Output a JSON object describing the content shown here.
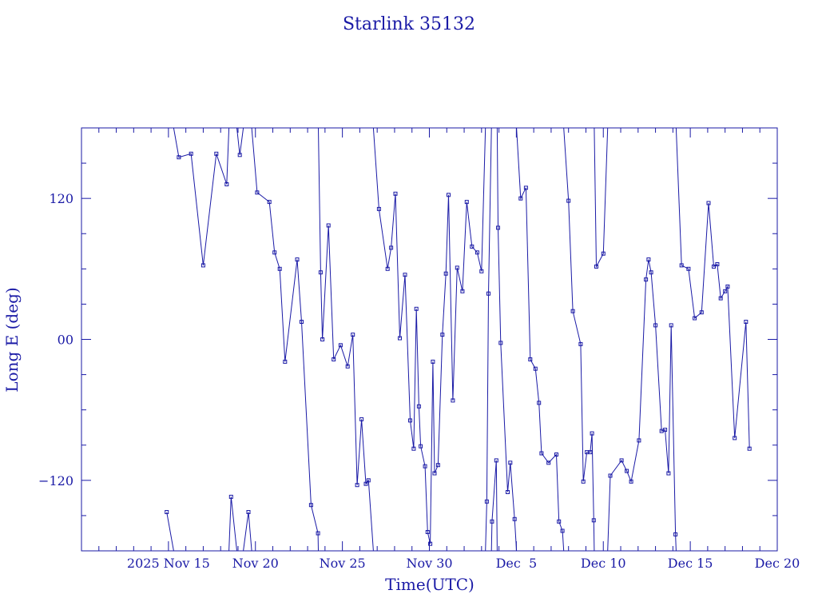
{
  "colors": {
    "ink": "#1a1aa6",
    "background": "#ffffff"
  },
  "chart_data": {
    "type": "line",
    "title": "Starlink 35132",
    "xlabel": "Time(UTC)",
    "ylabel": "Long E (deg)",
    "x_unit": "days from 2025 Nov 10 00:00 UTC",
    "xlim": [
      0,
      40
    ],
    "ylim": [
      -180,
      180
    ],
    "x_tick_values": [
      5,
      10,
      15,
      20,
      25,
      30,
      35,
      40
    ],
    "x_tick_labels": [
      "2025 Nov 15",
      "Nov 20",
      "Nov 25",
      "Nov 30",
      "Dec  5",
      "Dec 10",
      "Dec 15",
      "Dec 20"
    ],
    "y_tick_values": [
      -120,
      0,
      120
    ],
    "y_tick_labels": [
      "−120",
      "00",
      "120"
    ],
    "grid": false,
    "series": [
      {
        "marker": "square",
        "x": [
          4.9,
          5.6,
          6.3,
          7.0,
          7.75,
          8.35,
          8.6,
          9.1,
          9.6,
          10.1,
          10.8,
          11.1,
          11.4,
          11.7,
          12.4,
          12.65,
          13.2,
          13.6,
          13.75,
          13.85,
          14.2,
          14.5,
          14.9,
          15.3,
          15.6,
          15.85,
          16.1,
          16.35,
          16.5,
          17.1,
          17.6,
          17.8,
          18.05,
          18.3,
          18.6,
          18.9,
          19.1,
          19.25,
          19.4,
          19.5,
          19.75,
          19.9,
          20.05,
          20.2,
          20.3,
          20.5,
          20.75,
          20.95,
          21.1,
          21.35,
          21.6,
          21.9,
          22.15,
          22.45,
          22.75,
          23.0,
          23.3,
          23.4,
          23.6,
          23.85,
          23.95,
          24.1,
          24.5,
          24.65,
          24.9,
          25.25,
          25.55,
          25.8,
          26.1,
          26.3,
          26.45,
          26.85,
          27.3,
          27.45,
          27.65,
          28.0,
          28.25,
          28.7,
          28.85,
          29.05,
          29.25,
          29.35,
          29.45,
          29.6,
          30.0,
          30.4,
          31.05,
          31.35,
          31.6,
          32.05,
          32.45,
          32.6,
          32.75,
          33.0,
          33.35,
          33.55,
          33.75,
          33.9,
          34.15,
          34.5,
          34.9,
          35.25,
          35.65,
          36.05,
          36.35,
          36.55,
          36.75,
          37.0,
          37.15,
          37.55,
          38.2,
          38.4
        ],
        "y": [
          -147,
          155,
          158,
          63,
          158,
          132,
          -134,
          157,
          -147,
          125,
          117,
          74,
          60,
          -19,
          68,
          15,
          -141,
          -165,
          57,
          0,
          97,
          -17,
          -5,
          -23,
          4,
          -124,
          -68,
          -123,
          -120,
          111,
          60,
          78,
          124,
          1,
          55,
          -69,
          -93,
          26,
          -57,
          -91,
          -108,
          -164,
          -174,
          -19,
          -114,
          -107,
          4,
          56,
          123,
          -52,
          61,
          41,
          117,
          79,
          74,
          58,
          -138,
          39,
          -155,
          -103,
          95,
          -3,
          -130,
          -105,
          -153,
          120,
          129,
          -17,
          -25,
          -54,
          -97,
          -105,
          -98,
          -155,
          -163,
          118,
          24,
          -4,
          -121,
          -96,
          -96,
          -80,
          -154,
          62,
          73,
          -116,
          -103,
          -112,
          -121,
          -86,
          51,
          68,
          57,
          12,
          -78,
          -77,
          -114,
          12,
          -166,
          63,
          60,
          18,
          23,
          116,
          62,
          64,
          35,
          41,
          45,
          -84,
          15,
          -93
        ]
      }
    ]
  }
}
